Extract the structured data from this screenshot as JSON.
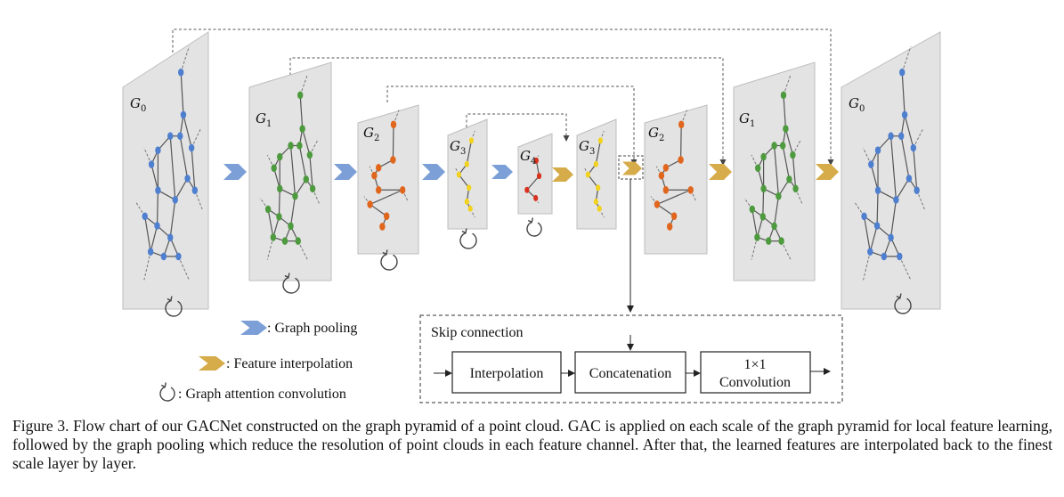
{
  "layers": {
    "enc0": {
      "name": "G",
      "sub": "0"
    },
    "enc1": {
      "name": "G",
      "sub": "1"
    },
    "enc2": {
      "name": "G",
      "sub": "2"
    },
    "enc3": {
      "name": "G",
      "sub": "3"
    },
    "enc4": {
      "name": "G",
      "sub": "4"
    },
    "dec3": {
      "name": "G",
      "sub": "3"
    },
    "dec2": {
      "name": "G",
      "sub": "2"
    },
    "dec1": {
      "name": "G",
      "sub": "1"
    },
    "dec0": {
      "name": "G",
      "sub": "0"
    }
  },
  "legend": {
    "pooling": ": Graph pooling",
    "interpolation": ": Feature interpolation",
    "gac": ": Graph attention convolution"
  },
  "skip": {
    "title": "Skip connection",
    "box1": "Interpolation",
    "box2": "Concatenation",
    "box3_line1": "1×1",
    "box3_line2": "Convolution"
  },
  "colors": {
    "scale0": "#4f7fcf",
    "scale1": "#4e9a3f",
    "scale2": "#e0661e",
    "scale3": "#f2d21f",
    "scale4": "#d9321e",
    "pool_arrow": "#7b9fd6",
    "interp_arrow": "#d6ac4a",
    "panel": "#e3e3e3"
  },
  "caption": "Figure 3. Flow chart of our GACNet constructed on the graph pyramid of a point cloud. GAC is applied on each scale of the graph pyramid for local feature learning, followed by the graph pooling which reduce the resolution of point clouds in each feature channel. After that, the learned features are interpolated back to the finest scale layer by layer."
}
